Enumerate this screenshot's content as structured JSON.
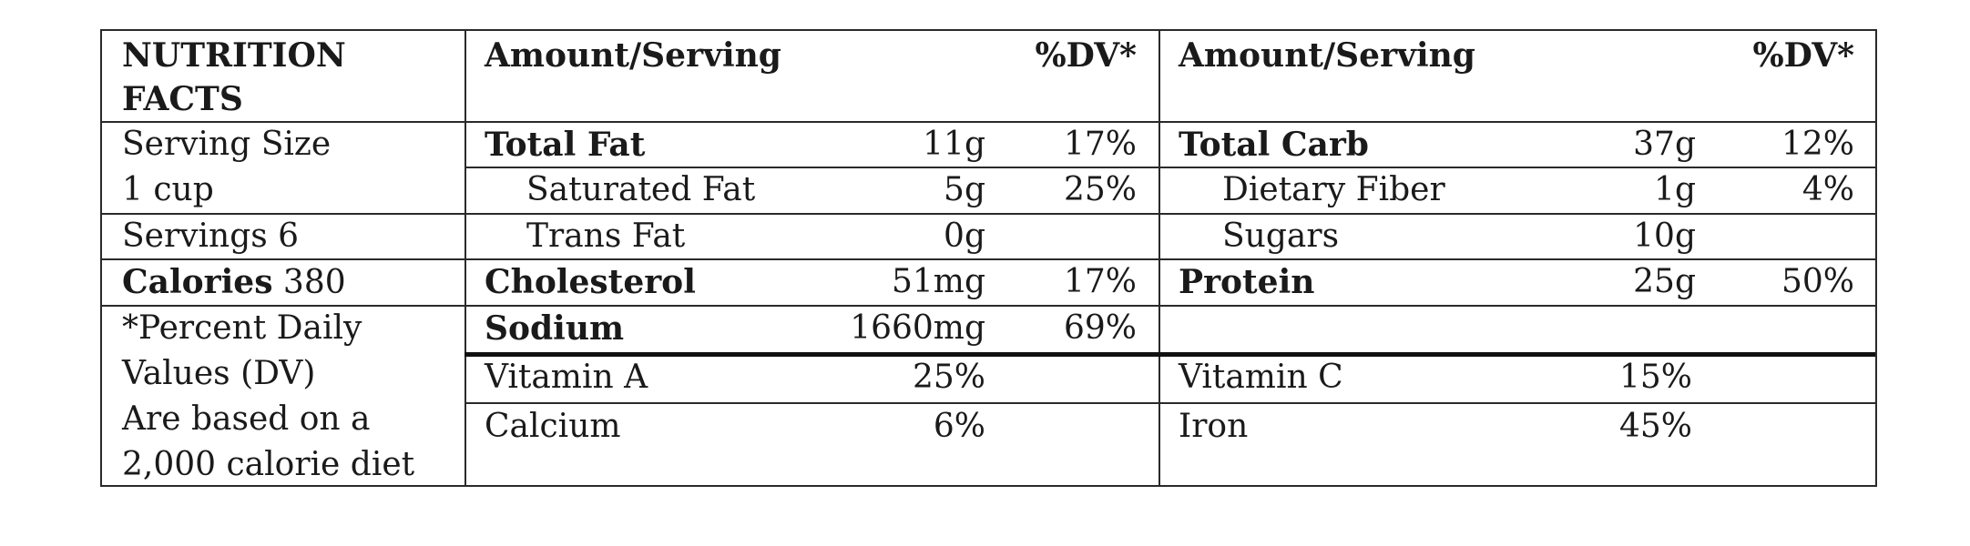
{
  "left": {
    "title_line1": "NUTRITION",
    "title_line2": "FACTS",
    "serving_size_line1": "Serving Size",
    "serving_size_line2": "1 cup",
    "servings": "Servings 6",
    "calories_label": "Calories",
    "calories_value": " 380",
    "footnote_lines": [
      "*Percent Daily",
      "Values (DV)",
      "Are based on a",
      "2,000 calorie diet"
    ]
  },
  "mid": {
    "header_amount": "Amount/Serving",
    "header_dv": "%DV*",
    "rows": [
      {
        "label": "Total Fat",
        "amount": "11g",
        "dv": "17%"
      },
      {
        "label": "Saturated Fat",
        "amount": "5g",
        "dv": "25%"
      },
      {
        "label": "Trans Fat",
        "amount": "0g",
        "dv": ""
      },
      {
        "label": "Cholesterol",
        "amount": "51mg",
        "dv": "17%"
      },
      {
        "label": "Sodium",
        "amount": "1660mg",
        "dv": "69%"
      }
    ],
    "vitamins": [
      {
        "label": "Vitamin A",
        "value": "25%"
      },
      {
        "label": "Calcium",
        "value": "6%"
      }
    ]
  },
  "right": {
    "header_amount": "Amount/Serving",
    "header_dv": "%DV*",
    "rows": [
      {
        "label": "Total Carb",
        "amount": "37g",
        "dv": "12%"
      },
      {
        "label": "Dietary Fiber",
        "amount": "1g",
        "dv": "4%"
      },
      {
        "label": "Sugars",
        "amount": "10g",
        "dv": ""
      },
      {
        "label": "Protein",
        "amount": "25g",
        "dv": "50%"
      }
    ],
    "vitamins": [
      {
        "label": "Vitamin C",
        "value": "15%"
      },
      {
        "label": "Iron",
        "value": "45%"
      }
    ]
  }
}
